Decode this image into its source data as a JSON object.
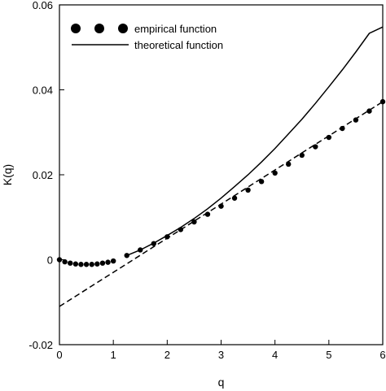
{
  "chart_data": {
    "type": "line",
    "xlabel": "q",
    "ylabel": "K(q)",
    "xlim": [
      0,
      6
    ],
    "ylim": [
      -0.02,
      0.06
    ],
    "x_ticks": [
      0,
      1,
      2,
      3,
      4,
      5,
      6
    ],
    "y_ticks": [
      -0.02,
      0,
      0.02,
      0.04,
      0.06
    ],
    "x_tick_labels": [
      "0",
      "1",
      "2",
      "3",
      "4",
      "5",
      "6"
    ],
    "y_tick_labels": [
      "-0.02",
      "0",
      "0.02",
      "0.04",
      "0.06"
    ],
    "legend_position": "top-left",
    "grid": false,
    "series": [
      {
        "name": "empirical function",
        "style": "markers",
        "color": "#000000",
        "x": [
          0.0,
          0.1,
          0.2,
          0.3,
          0.4,
          0.5,
          0.6,
          0.7,
          0.8,
          0.9,
          1.0,
          1.25,
          1.5,
          1.75,
          2.0,
          2.25,
          2.5,
          2.75,
          3.0,
          3.25,
          3.5,
          3.75,
          4.0,
          4.25,
          4.5,
          4.75,
          5.0,
          5.25,
          5.5,
          5.75,
          6.0
        ],
        "y": [
          0.0,
          -0.0005,
          -0.0008,
          -0.001,
          -0.0011,
          -0.0011,
          -0.0011,
          -0.001,
          -0.0008,
          -0.0006,
          -0.0003,
          0.001,
          0.0023,
          0.0038,
          0.0054,
          0.0071,
          0.0089,
          0.0107,
          0.0126,
          0.0145,
          0.0164,
          0.0184,
          0.0204,
          0.0225,
          0.0246,
          0.0266,
          0.0288,
          0.0309,
          0.0329,
          0.035,
          0.0372
        ]
      },
      {
        "name": "theoretical function",
        "style": "solid",
        "color": "#000000",
        "x": [
          1.25,
          1.5,
          1.75,
          2.0,
          2.25,
          2.5,
          2.75,
          3.0,
          3.25,
          3.5,
          3.75,
          4.0,
          4.25,
          4.5,
          4.75,
          5.0,
          5.25,
          5.5,
          5.75,
          6.0
        ],
        "y": [
          0.001,
          0.0023,
          0.0039,
          0.0057,
          0.0076,
          0.0097,
          0.012,
          0.0145,
          0.0172,
          0.02,
          0.023,
          0.0262,
          0.0296,
          0.0331,
          0.0368,
          0.0407,
          0.0447,
          0.0489,
          0.0533,
          0.0548
        ]
      },
      {
        "name": "",
        "style": "dashed",
        "color": "#000000",
        "x": [
          0,
          6
        ],
        "y": [
          -0.011,
          0.0372
        ]
      }
    ]
  }
}
